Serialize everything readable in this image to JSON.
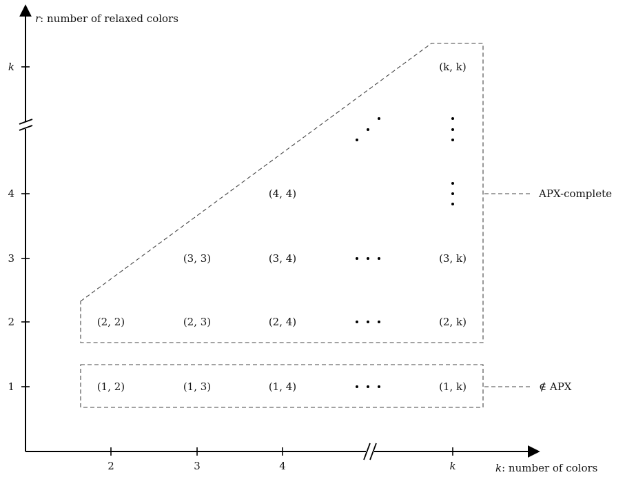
{
  "axes": {
    "x_label_var": "k",
    "x_label_text": ": number of colors",
    "y_label_var": "r",
    "y_label_text": ": number of relaxed colors",
    "x_ticks": [
      "2",
      "3",
      "4",
      "k"
    ],
    "y_ticks": [
      "1",
      "2",
      "3",
      "4",
      "k"
    ]
  },
  "cells": {
    "r1": [
      "(1, 2)",
      "(1, 3)",
      "(1, 4)",
      "(1, k)"
    ],
    "r2": [
      "(2, 2)",
      "(2, 3)",
      "(2, 4)",
      "(2, k)"
    ],
    "r3": [
      "(3, 3)",
      "(3, 4)",
      "(3, k)"
    ],
    "r4": [
      "(4, 4)"
    ],
    "rk": [
      "(k, k)"
    ]
  },
  "regions": {
    "apx_complete": "APX-complete",
    "not_apx": "∉ APX"
  }
}
